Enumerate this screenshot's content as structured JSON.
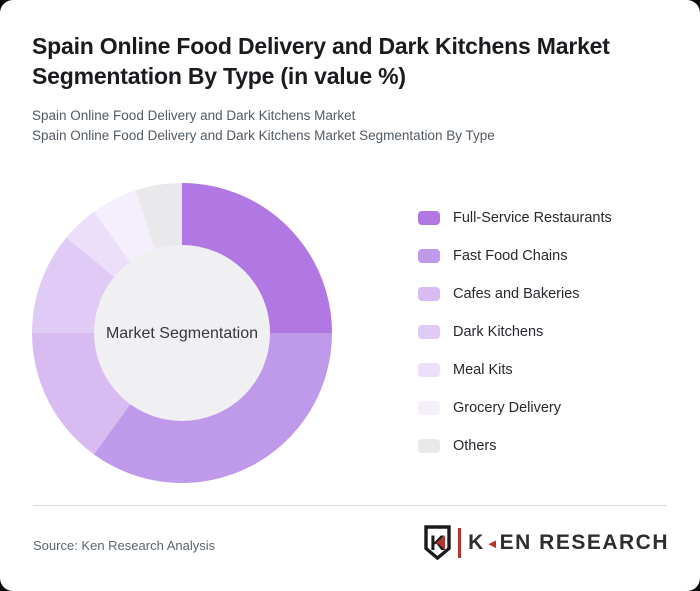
{
  "card": {
    "title_line1": "Spain Online Food Delivery and Dark Kitchens Market",
    "title_line2": "Segmentation By Type (in value %)",
    "subtitle_line1": "Spain Online Food Delivery and Dark Kitchens Market",
    "subtitle_line2": "Spain Online Food Delivery and Dark Kitchens Market Segmentation By Type"
  },
  "chart_data": {
    "type": "pie",
    "variant": "donut",
    "center_label": "Market Segmentation",
    "categories": [
      "Full-Service Restaurants",
      "Fast Food Chains",
      "Cafes and Bakeries",
      "Dark Kitchens",
      "Meal Kits",
      "Grocery Delivery",
      "Others"
    ],
    "values": [
      25,
      35,
      15,
      11,
      4,
      5,
      5
    ],
    "unit": "%",
    "colors": [
      "#b177e3",
      "#c09aea",
      "#d7bbf1",
      "#dfcbf5",
      "#ecdff9",
      "#f5effc",
      "#e9e9ec"
    ],
    "start_angle_deg": 0,
    "direction": "clockwise",
    "legend_position": "right",
    "inner_hole_color": "#f0eff1",
    "inner_radius_ratio": 0.587
  },
  "footer": {
    "source": "Source: Ken Research Analysis",
    "logo": {
      "mark_letter": "K",
      "arrow": "◄",
      "wordmark_k": "K",
      "wordmark_rest": "EN RESEARCH"
    }
  },
  "colors": {
    "accent_red": "#b5342d",
    "title_text": "#191b1e",
    "subtitle_text": "#525a63"
  }
}
